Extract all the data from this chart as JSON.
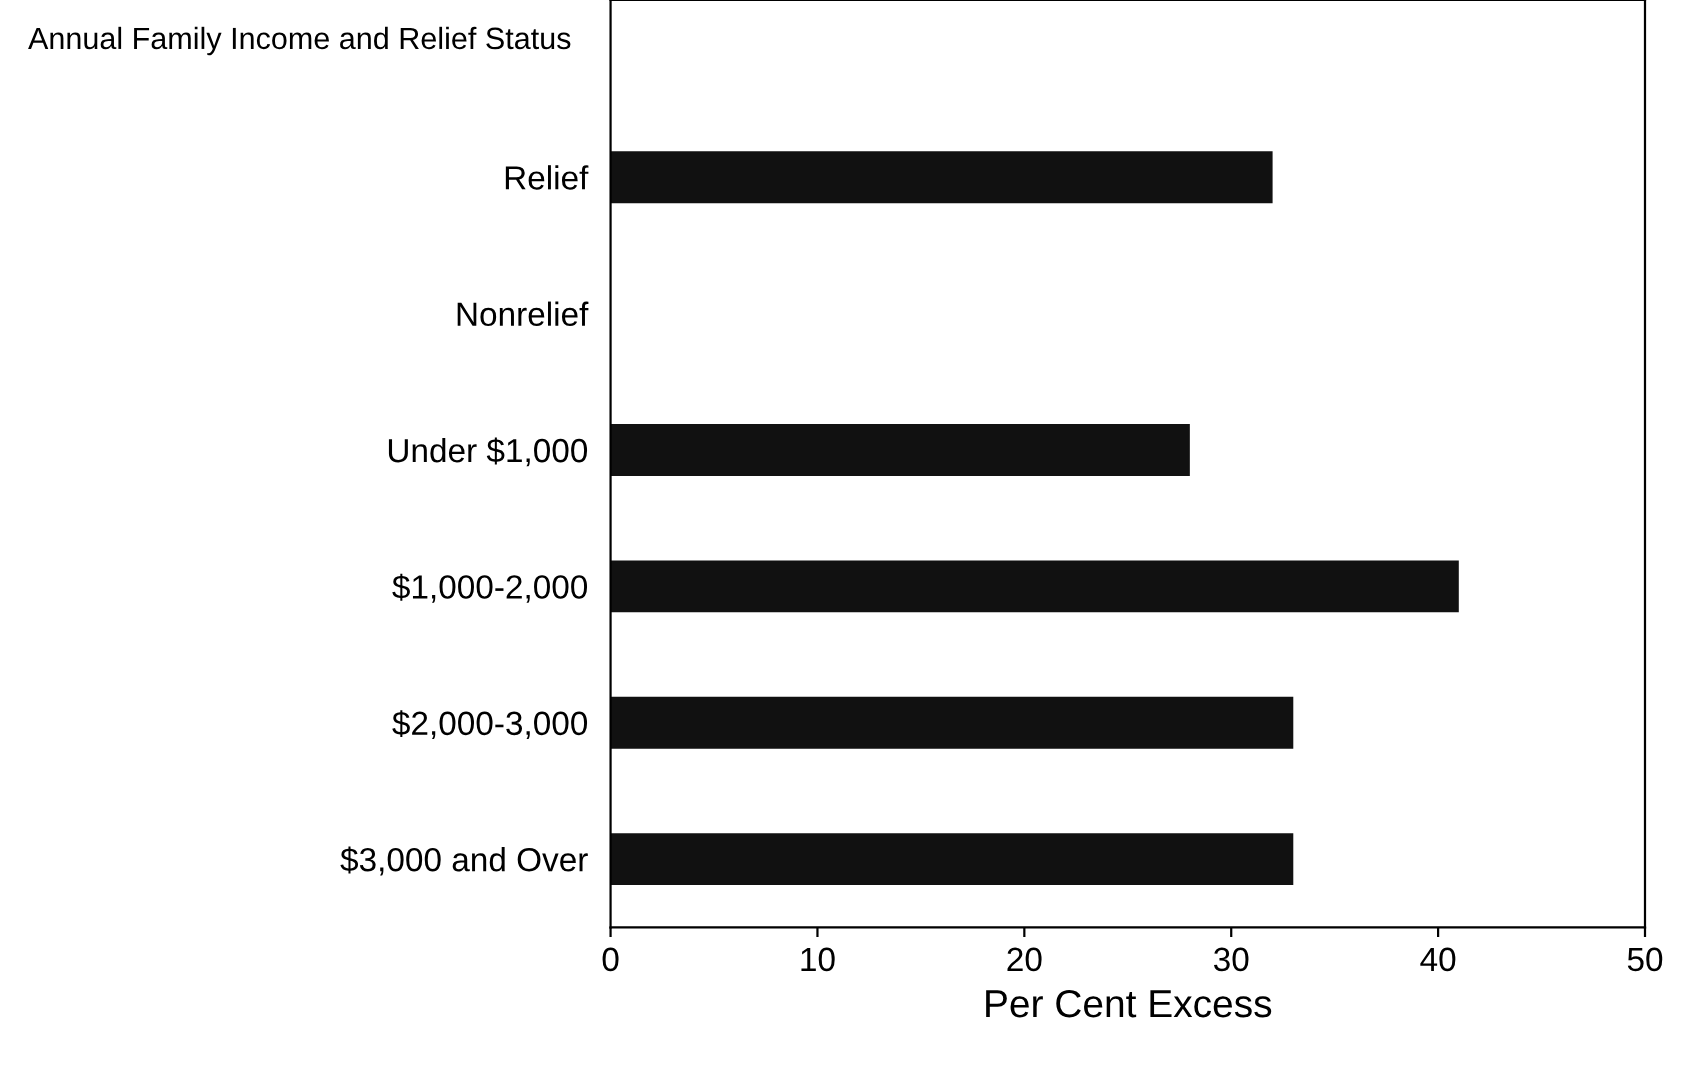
{
  "chart_data": {
    "type": "bar",
    "orientation": "horizontal",
    "ylabel": "Annual Family Income and Relief Status",
    "xlabel": "Per Cent Excess",
    "categories": [
      "Relief",
      "Nonrelief",
      "Under $1,000",
      "$1,000-2,000",
      "$2,000-3,000",
      "$3,000 and Over"
    ],
    "values": [
      32,
      null,
      28,
      41,
      33,
      33
    ],
    "color": "#111111",
    "xlim": [
      0,
      50
    ],
    "xticks": [
      0,
      10,
      20,
      30,
      40,
      50
    ],
    "grid": false
  }
}
